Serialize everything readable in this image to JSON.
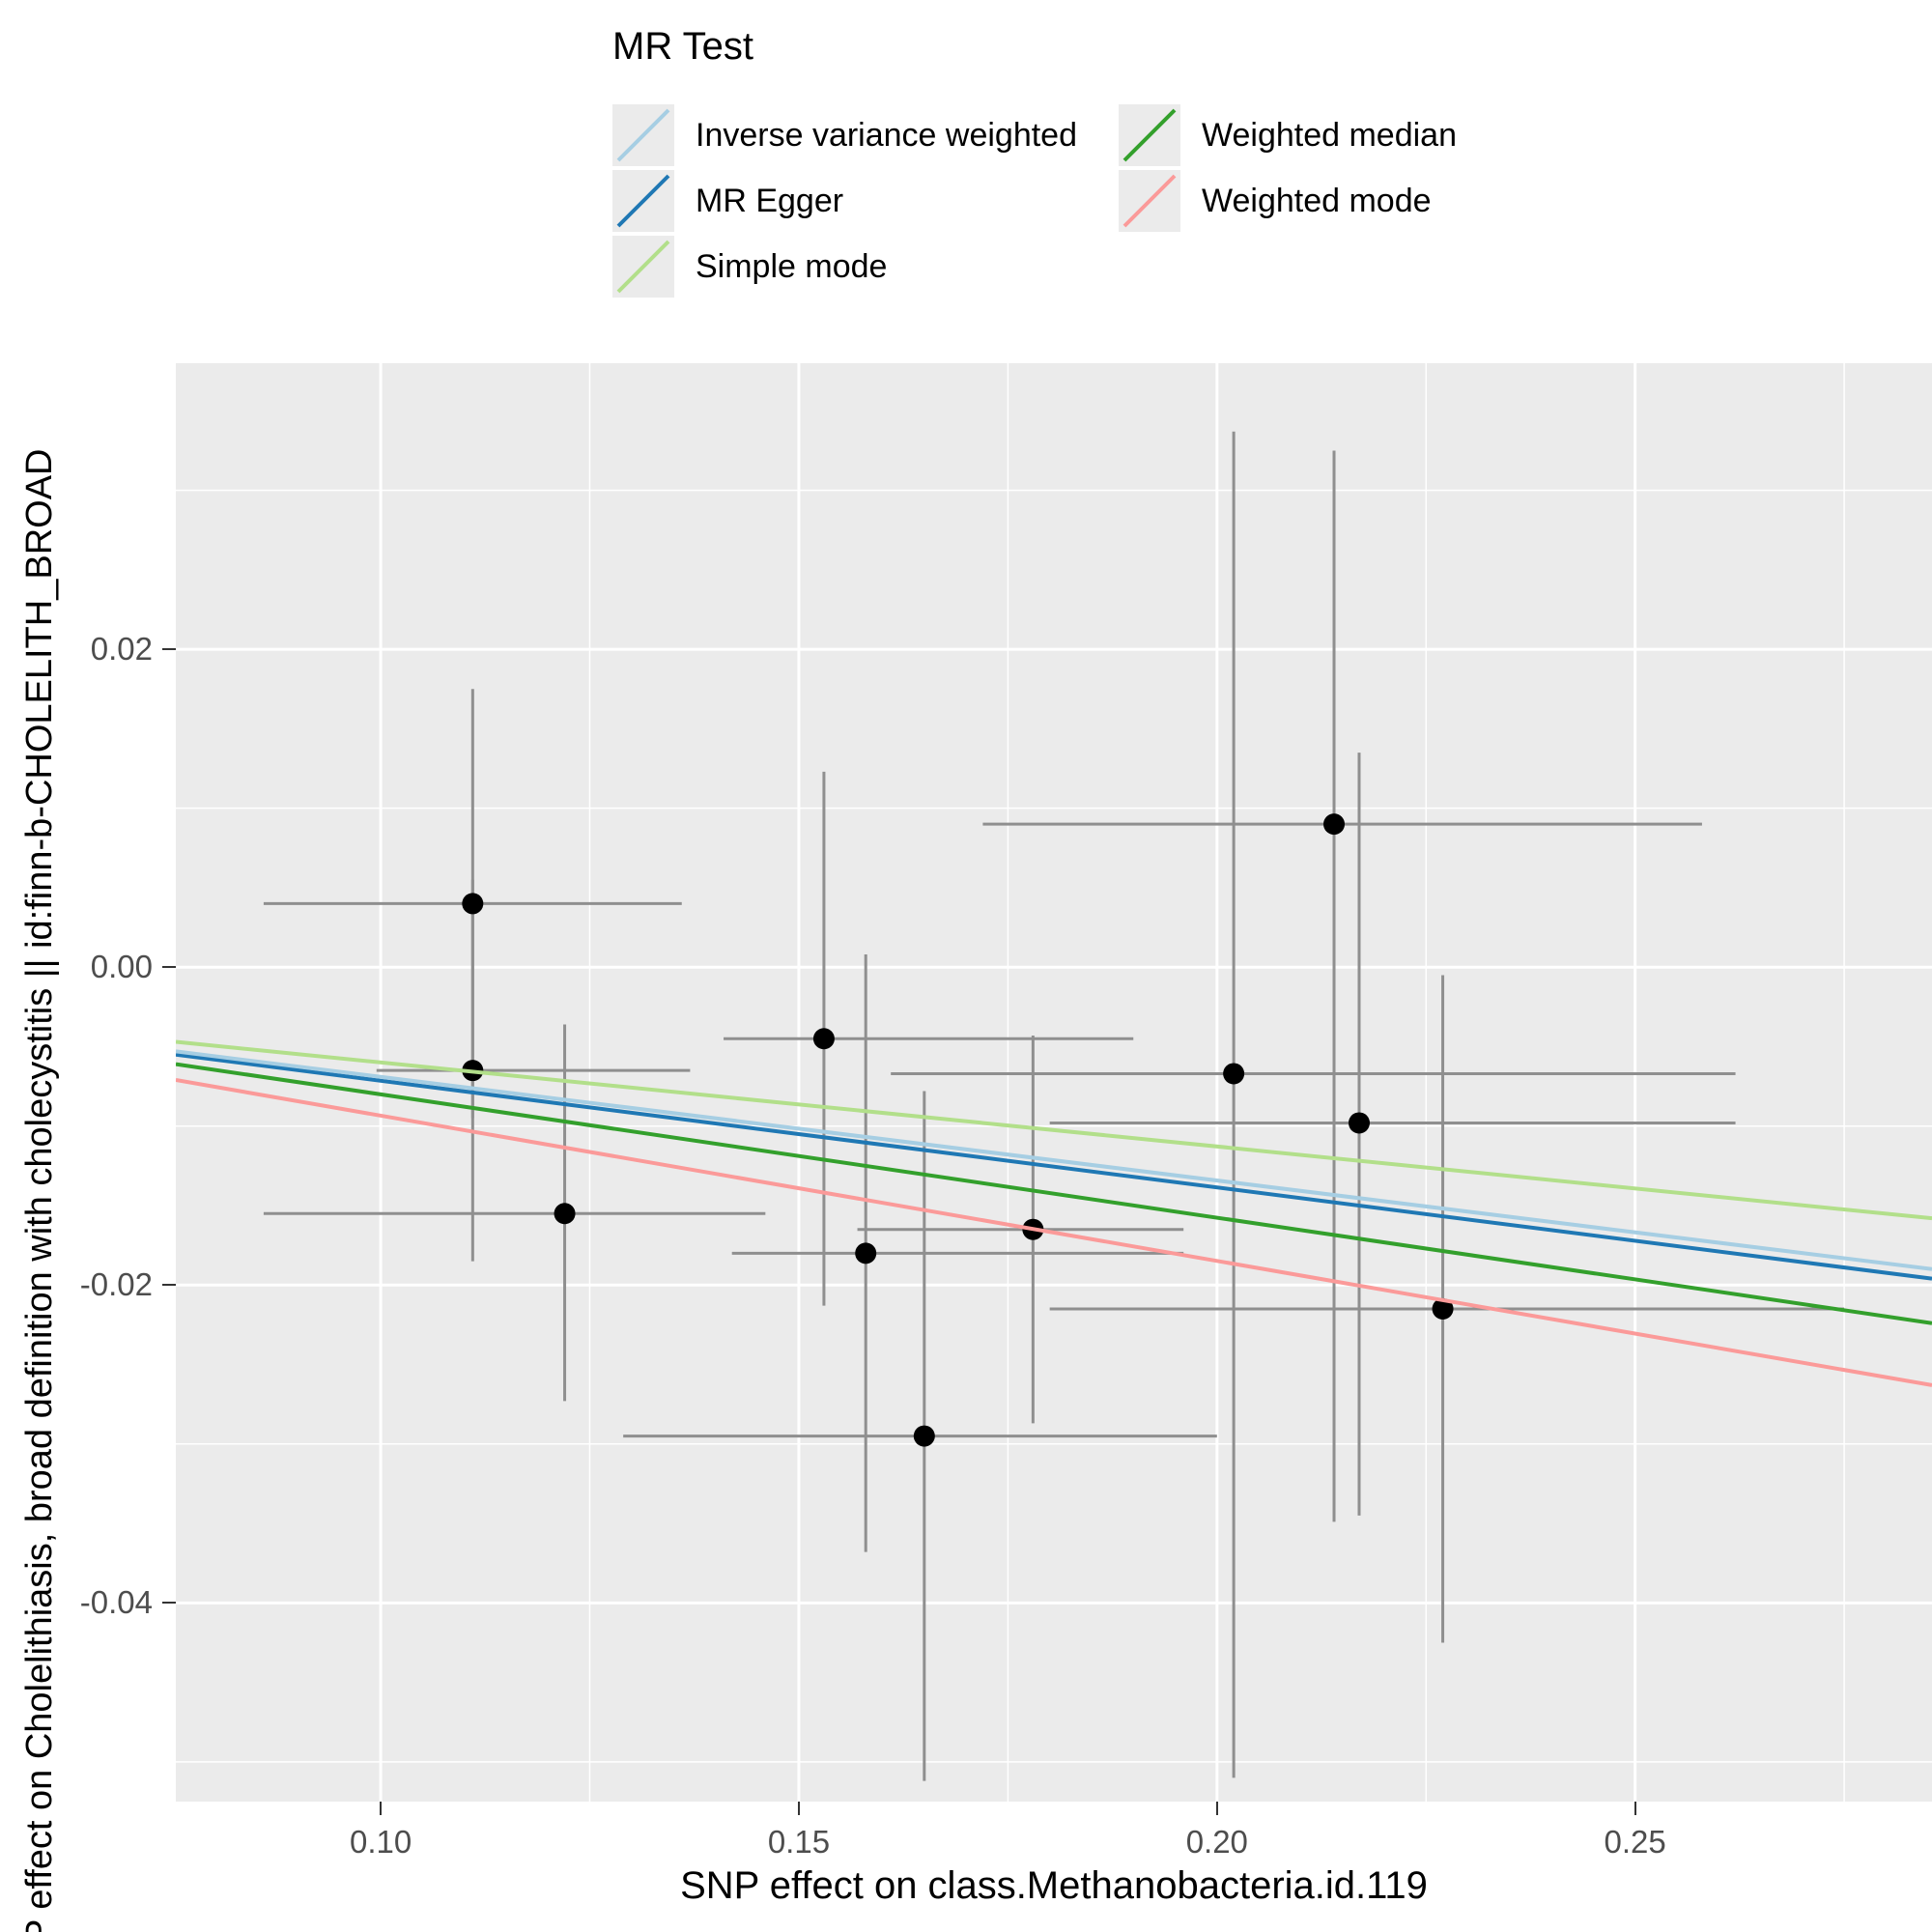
{
  "legend": {
    "title": "MR Test",
    "entries": [
      {
        "label": "Inverse variance weighted",
        "color": "#A6CEE3"
      },
      {
        "label": "MR Egger",
        "color": "#1F78B4"
      },
      {
        "label": "Simple mode",
        "color": "#B2DF8A"
      },
      {
        "label": "Weighted median",
        "color": "#33A02C"
      },
      {
        "label": "Weighted mode",
        "color": "#FB9A99"
      }
    ]
  },
  "chart_data": {
    "type": "scatter",
    "xlabel": "SNP effect on class.Methanobacteria.id.119",
    "ylabel": "P effect on Cholelithiasis, broad definition with cholecystitis || id:finn-b-CHOLELITH_BROAD",
    "xlim": [
      0.0755,
      0.2855
    ],
    "ylim": [
      -0.0525,
      0.038
    ],
    "x_ticks": {
      "values": [
        0.1,
        0.15,
        0.2,
        0.25
      ],
      "labels": [
        "0.10",
        "0.15",
        "0.20",
        "0.25"
      ]
    },
    "y_ticks": {
      "values": [
        0.02,
        0.0,
        -0.02,
        -0.04
      ],
      "labels": [
        "0.02",
        "0.00",
        "-0.02",
        "-0.04"
      ]
    },
    "x_minor": [
      0.125,
      0.175,
      0.225,
      0.275
    ],
    "y_minor": [
      0.03,
      0.01,
      -0.01,
      -0.03,
      -0.05
    ],
    "points": [
      {
        "x": 0.111,
        "y": 0.004,
        "xlo": 0.086,
        "xhi": 0.136,
        "ylo": -0.0095,
        "yhi": 0.0175
      },
      {
        "x": 0.111,
        "y": -0.0065,
        "xlo": 0.0995,
        "xhi": 0.137,
        "ylo": -0.0185,
        "yhi": 0.0055
      },
      {
        "x": 0.122,
        "y": -0.0155,
        "xlo": 0.086,
        "xhi": 0.146,
        "ylo": -0.0273,
        "yhi": -0.0036
      },
      {
        "x": 0.153,
        "y": -0.0045,
        "xlo": 0.141,
        "xhi": 0.19,
        "ylo": -0.0213,
        "yhi": 0.0123
      },
      {
        "x": 0.158,
        "y": -0.018,
        "xlo": 0.142,
        "xhi": 0.196,
        "ylo": -0.0368,
        "yhi": 0.0008
      },
      {
        "x": 0.165,
        "y": -0.0295,
        "xlo": 0.129,
        "xhi": 0.2,
        "ylo": -0.0512,
        "yhi": -0.0078
      },
      {
        "x": 0.178,
        "y": -0.0165,
        "xlo": 0.157,
        "xhi": 0.196,
        "ylo": -0.0287,
        "yhi": -0.0043
      },
      {
        "x": 0.202,
        "y": -0.0067,
        "xlo": 0.161,
        "xhi": 0.262,
        "ylo": -0.051,
        "yhi": 0.0337
      },
      {
        "x": 0.214,
        "y": 0.009,
        "xlo": 0.172,
        "xhi": 0.258,
        "ylo": -0.0349,
        "yhi": 0.0325
      },
      {
        "x": 0.217,
        "y": -0.0098,
        "xlo": 0.18,
        "xhi": 0.262,
        "ylo": -0.0345,
        "yhi": 0.0135
      },
      {
        "x": 0.227,
        "y": -0.0215,
        "xlo": 0.18,
        "xhi": 0.275,
        "ylo": -0.0425,
        "yhi": -0.0005
      }
    ],
    "lines": [
      {
        "id": "mr-egger",
        "name": "MR Egger",
        "color": "#1F78B4",
        "x0": 0.0755,
        "y0": -0.0055,
        "x1": 0.2855,
        "y1": -0.0196
      },
      {
        "id": "ivw",
        "name": "Inverse variance weighted",
        "color": "#A6CEE3",
        "x0": 0.0755,
        "y0": -0.0053,
        "x1": 0.2855,
        "y1": -0.019
      },
      {
        "id": "simple-mode",
        "name": "Simple mode",
        "color": "#B2DF8A",
        "x0": 0.0755,
        "y0": -0.0047,
        "x1": 0.2855,
        "y1": -0.0158
      },
      {
        "id": "weighted-median",
        "name": "Weighted median",
        "color": "#33A02C",
        "x0": 0.0755,
        "y0": -0.0061,
        "x1": 0.2855,
        "y1": -0.0224
      },
      {
        "id": "weighted-mode",
        "name": "Weighted mode",
        "color": "#FB9A99",
        "x0": 0.0755,
        "y0": -0.0071,
        "x1": 0.2855,
        "y1": -0.0263
      }
    ]
  },
  "style": {
    "panel_bg": "#EBEBEB",
    "grid_color": "#FFFFFF",
    "point_color": "#000000",
    "error_bar_color": "#8F8F8F",
    "legend_key_bg": "#EBEBEB",
    "tick_mark_color": "#333333",
    "tick_label_color": "#4D4D4D",
    "axis_title_color": "#000000"
  }
}
